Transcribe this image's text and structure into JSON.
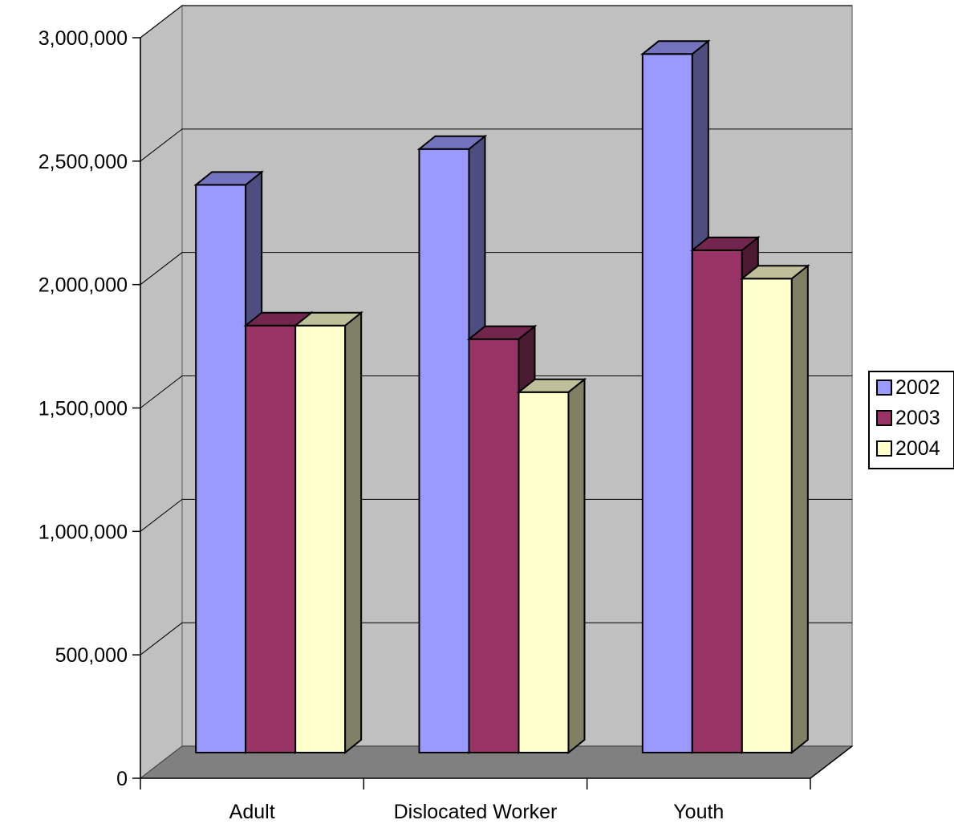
{
  "chart_data": {
    "type": "bar",
    "title": "",
    "xlabel": "",
    "ylabel": "",
    "categories": [
      "Adult",
      "Dislocated Worker",
      "Youth"
    ],
    "series": [
      {
        "name": "2002",
        "values": [
          2300000,
          2445000,
          2830000
        ],
        "color": "#9999FF",
        "side_color": "#4D4D80",
        "top_color": "#7373BF"
      },
      {
        "name": "2003",
        "values": [
          1730000,
          1675000,
          2035000
        ],
        "color": "#993366",
        "side_color": "#4D1A33",
        "top_color": "#73264D"
      },
      {
        "name": "2004",
        "values": [
          1730000,
          1460000,
          1920000
        ],
        "color": "#FFFFCC",
        "side_color": "#808066",
        "top_color": "#BFBF99"
      }
    ],
    "ylim": [
      0,
      3000000
    ],
    "y_ticks": [
      0,
      500000,
      1000000,
      1500000,
      2000000,
      2500000,
      3000000
    ],
    "y_tick_labels": [
      "0",
      "500,000",
      "1,000,000",
      "1,500,000",
      "2,000,000",
      "2,500,000",
      "3,000,000"
    ],
    "grid": true,
    "legend_position": "right",
    "wall_color": "#C0C0C0",
    "floor_color": "#808080"
  }
}
